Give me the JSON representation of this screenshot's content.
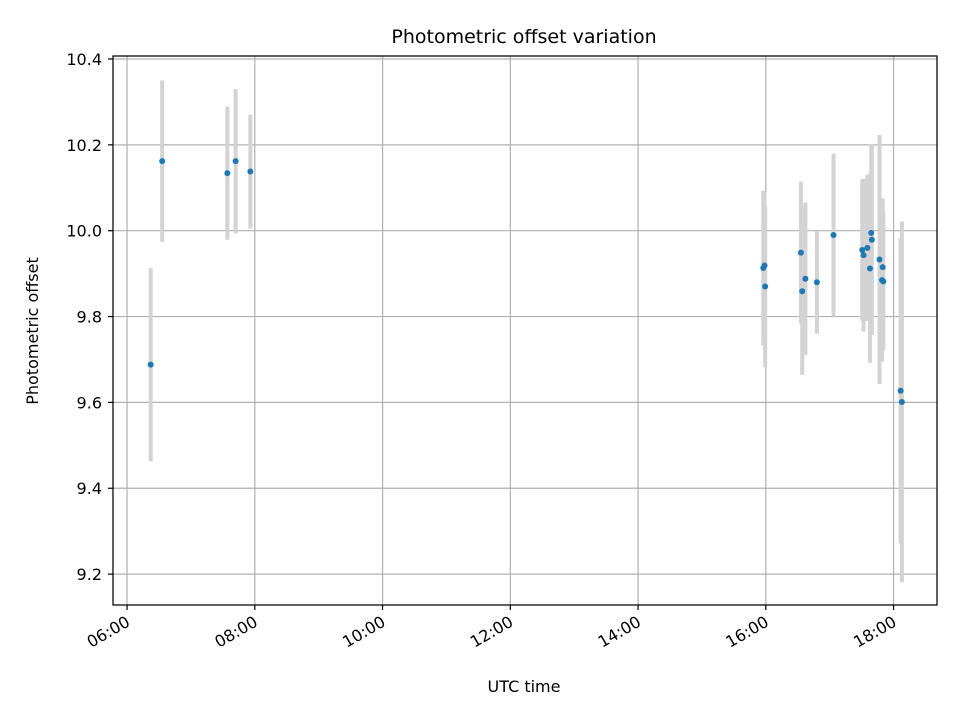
{
  "chart_data": {
    "type": "scatter",
    "title": "Photometric offset variation",
    "xlabel": "UTC time",
    "ylabel": "Photometric offset",
    "x_unit": "hour of day (UTC)",
    "xlim": [
      5.78,
      18.68
    ],
    "ylim": [
      9.128,
      10.407
    ],
    "x_ticks": [
      6,
      8,
      10,
      12,
      14,
      16,
      18
    ],
    "x_tick_labels": [
      "06:00",
      "08:00",
      "10:00",
      "12:00",
      "14:00",
      "16:00",
      "18:00"
    ],
    "y_ticks": [
      9.2,
      9.4,
      9.6,
      9.8,
      10.0,
      10.2,
      10.4
    ],
    "y_tick_labels": [
      "9.2",
      "9.4",
      "9.6",
      "9.8",
      "10.0",
      "10.2",
      "10.4"
    ],
    "grid": true,
    "legend": "none",
    "colors": {
      "marker": "#1f77b4",
      "errorbar": "#d3d3d3",
      "grid": "#b0b0b0",
      "axes": "#000000"
    },
    "series": [
      {
        "points": [
          {
            "x": 6.37,
            "y": 9.688,
            "err": 0.225
          },
          {
            "x": 6.55,
            "y": 10.162,
            "err": 0.188
          },
          {
            "x": 7.57,
            "y": 10.134,
            "err": 0.155
          },
          {
            "x": 7.7,
            "y": 10.162,
            "err": 0.168
          },
          {
            "x": 7.93,
            "y": 10.138,
            "err": 0.133
          },
          {
            "x": 15.96,
            "y": 9.913,
            "err": 0.18
          },
          {
            "x": 15.98,
            "y": 9.919,
            "err": 0.17
          },
          {
            "x": 15.99,
            "y": 9.87,
            "err": 0.188
          },
          {
            "x": 16.55,
            "y": 9.949,
            "err": 0.165
          },
          {
            "x": 16.57,
            "y": 9.859,
            "err": 0.195
          },
          {
            "x": 16.62,
            "y": 9.888,
            "err": 0.178
          },
          {
            "x": 16.8,
            "y": 9.88,
            "err": 0.12
          },
          {
            "x": 17.06,
            "y": 9.99,
            "err": 0.19
          },
          {
            "x": 17.51,
            "y": 9.955,
            "err": 0.165
          },
          {
            "x": 17.53,
            "y": 9.943,
            "err": 0.178
          },
          {
            "x": 17.59,
            "y": 9.96,
            "err": 0.17
          },
          {
            "x": 17.63,
            "y": 9.912,
            "err": 0.22
          },
          {
            "x": 17.65,
            "y": 9.995,
            "err": 0.205
          },
          {
            "x": 17.66,
            "y": 9.979,
            "err": 0.222
          },
          {
            "x": 17.78,
            "y": 9.933,
            "err": 0.29
          },
          {
            "x": 17.82,
            "y": 9.885,
            "err": 0.19
          },
          {
            "x": 17.83,
            "y": 9.915,
            "err": 0.16
          },
          {
            "x": 17.84,
            "y": 9.882,
            "err": 0.16
          },
          {
            "x": 18.11,
            "y": 9.627,
            "err": 0.355
          },
          {
            "x": 18.13,
            "y": 9.601,
            "err": 0.42
          }
        ]
      }
    ]
  }
}
